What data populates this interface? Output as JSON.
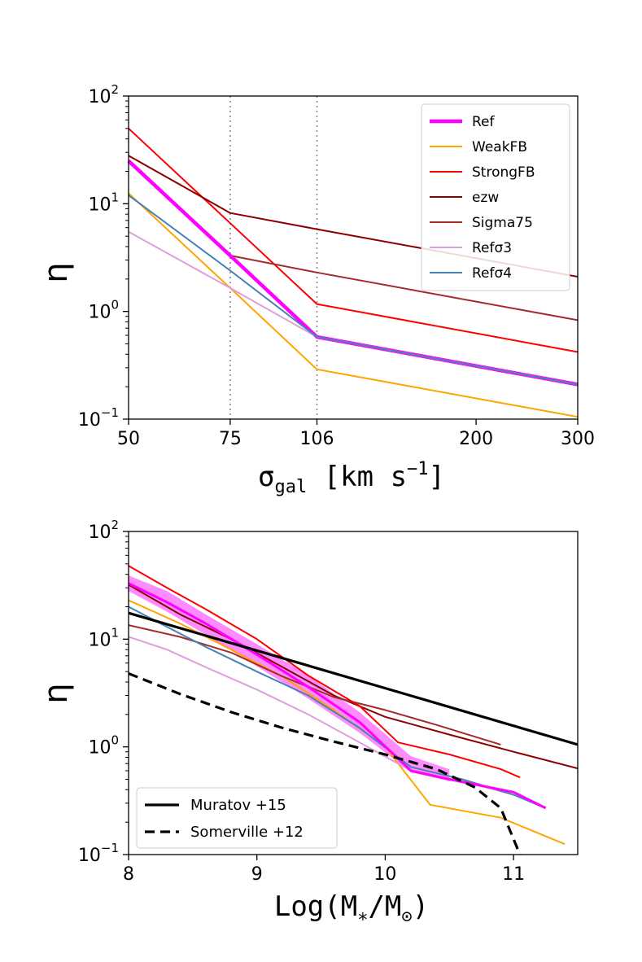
{
  "chart_data": [
    {
      "type": "line",
      "xscale": "log",
      "yscale": "log",
      "xlabel": "σ_gal [km s^-1]",
      "xlabel_main": "σ",
      "xlabel_sub": "gal",
      "xlabel_unit": "[km s",
      "xlabel_exp": "−1",
      "xlabel_close": "]",
      "ylabel": "η",
      "xlim": [
        50,
        300
      ],
      "ylim": [
        0.1,
        100
      ],
      "xticks": [
        50,
        75,
        106,
        200,
        300
      ],
      "xtick_labels": [
        "50",
        "75",
        "106",
        "200",
        "300"
      ],
      "ytick_labels": [
        {
          "value": 100,
          "base": "10",
          "exp": "2"
        },
        {
          "value": 10,
          "base": "10",
          "exp": "1"
        },
        {
          "value": 1,
          "base": "10",
          "exp": "0"
        },
        {
          "value": 0.1,
          "base": "10",
          "exp": "−1"
        }
      ],
      "vlines": [
        75,
        106
      ],
      "legend_position": "top-right",
      "series": [
        {
          "name": "Ref",
          "color": "#ff00ff",
          "width": 4.5,
          "x": [
            50,
            75,
            106,
            300
          ],
          "y": [
            25,
            3.3,
            0.58,
            0.21
          ]
        },
        {
          "name": "WeakFB",
          "color": "#ffa500",
          "width": 2,
          "x": [
            50,
            75,
            106,
            300
          ],
          "y": [
            12.5,
            1.65,
            0.29,
            0.105
          ]
        },
        {
          "name": "StrongFB",
          "color": "#ff0000",
          "width": 2,
          "x": [
            50,
            75,
            106,
            300
          ],
          "y": [
            50,
            6.6,
            1.17,
            0.42
          ]
        },
        {
          "name": "ezw",
          "color": "#8b0000",
          "width": 2,
          "x": [
            50,
            75,
            106,
            300
          ],
          "y": [
            28,
            8.2,
            5.8,
            2.1
          ]
        },
        {
          "name": "Sigma75",
          "color": "#a52a2a",
          "width": 2,
          "x": [
            50,
            75,
            106,
            300
          ],
          "y": [
            25,
            3.3,
            2.3,
            0.83
          ]
        },
        {
          "name": "Refσ3",
          "color": "#dda0dd",
          "width": 2,
          "x": [
            50,
            75,
            106,
            300
          ],
          "y": [
            5.5,
            1.65,
            0.58,
            0.21
          ]
        },
        {
          "name": "Refσ4",
          "color": "#4682b4",
          "width": 2,
          "x": [
            50,
            75,
            106,
            300
          ],
          "y": [
            12,
            2.4,
            0.58,
            0.21
          ]
        }
      ]
    },
    {
      "type": "line",
      "yscale": "log",
      "xlabel": "Log(M*/M⊙)",
      "xlabel_text": "Log(M",
      "xlabel_sub1": "∗",
      "xlabel_mid": "/M",
      "xlabel_sub2": "⊙",
      "xlabel_close": ")",
      "ylabel": "η",
      "xlim": [
        8,
        11.5
      ],
      "ylim": [
        0.1,
        100
      ],
      "xticks": [
        8,
        9,
        10,
        11
      ],
      "xtick_labels": [
        "8",
        "9",
        "10",
        "11"
      ],
      "ytick_labels": [
        {
          "value": 100,
          "base": "10",
          "exp": "2"
        },
        {
          "value": 10,
          "base": "10",
          "exp": "1"
        },
        {
          "value": 1,
          "base": "10",
          "exp": "0"
        },
        {
          "value": 0.1,
          "base": "10",
          "exp": "−1"
        }
      ],
      "legend_position": "bottom-left",
      "band": {
        "color": "#ff00ff",
        "opacity": 0.45,
        "x": [
          8.0,
          8.3,
          8.6,
          9.0,
          9.4,
          9.8,
          10.2,
          10.5
        ],
        "upper": [
          39,
          28,
          17,
          9,
          4.6,
          2.1,
          0.82,
          0.62
        ],
        "lower": [
          28,
          18,
          11,
          5.6,
          2.8,
          1.35,
          0.58,
          0.48
        ]
      },
      "series": [
        {
          "name": "Ref",
          "color": "#ff00ff",
          "width": 3,
          "x": [
            8.0,
            8.3,
            8.6,
            9.0,
            9.4,
            9.8,
            10.2,
            10.5,
            11.0,
            11.25
          ],
          "y": [
            33,
            22,
            14,
            7.2,
            3.6,
            1.7,
            0.6,
            0.5,
            0.38,
            0.27
          ]
        },
        {
          "name": "WeakFB",
          "color": "#ffa500",
          "width": 2,
          "x": [
            8.0,
            8.4,
            8.8,
            9.2,
            9.6,
            10.0,
            10.35,
            10.9,
            11.4
          ],
          "y": [
            23,
            14,
            8,
            4.5,
            2.2,
            1.0,
            0.29,
            0.22,
            0.125
          ]
        },
        {
          "name": "StrongFB",
          "color": "#ff0000",
          "width": 2,
          "x": [
            8.0,
            8.3,
            8.6,
            9.0,
            9.4,
            9.8,
            10.1,
            10.5,
            10.9,
            11.05
          ],
          "y": [
            48,
            30,
            19,
            10,
            4.6,
            2.4,
            1.1,
            0.85,
            0.62,
            0.52
          ]
        },
        {
          "name": "ezw",
          "color": "#8b0000",
          "width": 2,
          "x": [
            8.0,
            8.4,
            8.8,
            9.2,
            9.6,
            10.0,
            10.5,
            11.0,
            11.5
          ],
          "y": [
            32,
            17,
            10,
            5.5,
            3.0,
            1.9,
            1.3,
            0.9,
            0.63
          ]
        },
        {
          "name": "Sigma75",
          "color": "#a52a2a",
          "width": 2,
          "x": [
            8.0,
            8.4,
            8.8,
            9.2,
            9.6,
            10.0,
            10.4,
            10.9
          ],
          "y": [
            13.5,
            10.5,
            7.5,
            4.5,
            2.9,
            2.2,
            1.6,
            1.05
          ]
        },
        {
          "name": "Refσ3",
          "color": "#dda0dd",
          "width": 2,
          "x": [
            8.0,
            8.3,
            8.6,
            9.0,
            9.4,
            9.8,
            10.2,
            10.6,
            11.0,
            11.25
          ],
          "y": [
            10.5,
            8,
            5.5,
            3.4,
            2.0,
            1.1,
            0.6,
            0.48,
            0.36,
            0.27
          ]
        },
        {
          "name": "Refσ4",
          "color": "#4682b4",
          "width": 2,
          "x": [
            8.0,
            8.3,
            8.6,
            9.0,
            9.4,
            9.8,
            10.2,
            10.6,
            11.0,
            11.25
          ],
          "y": [
            20,
            13,
            8.5,
            5,
            3,
            1.5,
            0.65,
            0.5,
            0.36,
            0.27
          ]
        },
        {
          "name": "Muratov +15",
          "color": "#000000",
          "width": 3.2,
          "x": [
            8.0,
            11.5
          ],
          "y": [
            17.5,
            1.05
          ]
        },
        {
          "name": "Somerville +12",
          "color": "#000000",
          "width": 3.2,
          "dash": "12,7",
          "x": [
            8.0,
            8.4,
            8.8,
            9.2,
            9.6,
            10.0,
            10.4,
            10.7,
            10.9,
            11.05
          ],
          "y": [
            4.8,
            3.1,
            2.1,
            1.5,
            1.12,
            0.85,
            0.62,
            0.42,
            0.27,
            0.1
          ]
        }
      ],
      "legend": [
        "Muratov +15",
        "Somerville +12"
      ]
    }
  ]
}
